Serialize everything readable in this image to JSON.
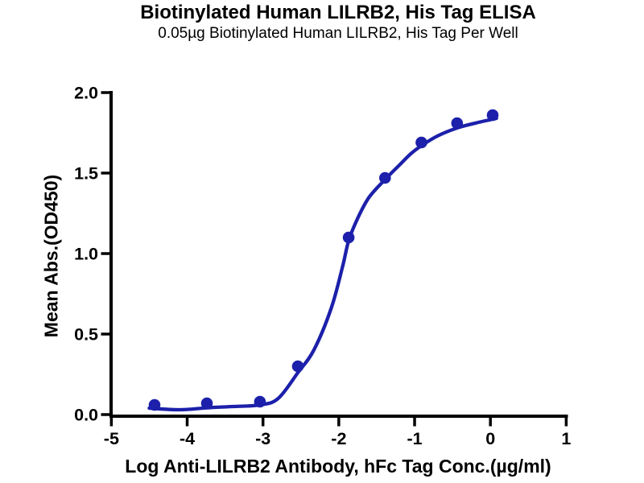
{
  "chart_data": {
    "type": "scatter",
    "title": "Biotinylated Human LILRB2, His Tag ELISA",
    "subtitle": "0.05µg Biotinylated Human LILRB2, His Tag Per Well",
    "xlabel": "Log Anti-LILRB2 Antibody, hFc Tag Conc.(µg/ml)",
    "ylabel": "Mean Abs.(OD450)",
    "xlim": [
      -5,
      1
    ],
    "ylim": [
      0,
      2
    ],
    "x_ticks": [
      -5,
      -4,
      -3,
      -2,
      -1,
      0,
      1
    ],
    "x_tick_labels": [
      "-5",
      "-4",
      "-3",
      "-2",
      "-1",
      "0",
      "1"
    ],
    "y_ticks": [
      0,
      0.5,
      1,
      1.5,
      2
    ],
    "y_tick_labels": [
      "0.0",
      "0.5",
      "1.0",
      "1.5",
      "2.0"
    ],
    "grid": false,
    "legend": "none",
    "colors": {
      "points": "#1c20aa",
      "curve": "#1c20aa",
      "axis": "#000000",
      "background": "#ffffff"
    },
    "series": [
      {
        "name": "Anti-LILRB2 Antibody, hFc Tag",
        "x": [
          -4.43,
          -3.74,
          -3.04,
          -2.54,
          -1.87,
          -1.39,
          -0.91,
          -0.44,
          0.03
        ],
        "y": [
          0.06,
          0.07,
          0.08,
          0.3,
          1.1,
          1.47,
          1.69,
          1.81,
          1.86
        ]
      }
    ],
    "fit_curve": {
      "description": "4PL sigmoidal dose-response fit",
      "points": [
        [
          -4.5,
          0.04
        ],
        [
          -4.1,
          0.03
        ],
        [
          -3.74,
          0.042
        ],
        [
          -3.4,
          0.05
        ],
        [
          -3.04,
          0.06
        ],
        [
          -2.8,
          0.1
        ],
        [
          -2.54,
          0.26
        ],
        [
          -2.33,
          0.4
        ],
        [
          -2.1,
          0.66
        ],
        [
          -1.95,
          0.92
        ],
        [
          -1.87,
          1.08
        ],
        [
          -1.75,
          1.22
        ],
        [
          -1.6,
          1.35
        ],
        [
          -1.39,
          1.46
        ],
        [
          -1.2,
          1.55
        ],
        [
          -1.05,
          1.62
        ],
        [
          -0.91,
          1.67
        ],
        [
          -0.7,
          1.73
        ],
        [
          -0.44,
          1.78
        ],
        [
          -0.2,
          1.81
        ],
        [
          0.08,
          1.84
        ]
      ]
    }
  }
}
